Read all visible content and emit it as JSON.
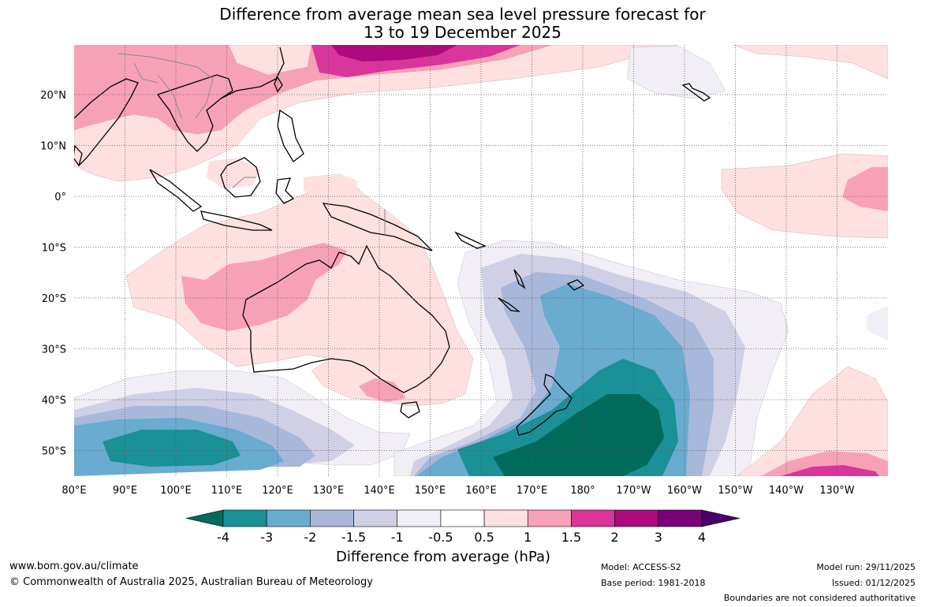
{
  "title_line1": "Difference from average mean sea level pressure forecast for",
  "title_line2": "13 to 19 December 2025",
  "map": {
    "lat_labels": [
      "20°N",
      "10°N",
      "0°",
      "10°S",
      "20°S",
      "30°S",
      "40°S",
      "50°S"
    ],
    "lon_labels": [
      "80°E",
      "90°E",
      "100°E",
      "110°E",
      "120°E",
      "130°E",
      "140°E",
      "150°E",
      "160°E",
      "170°E",
      "180°",
      "170°W",
      "160°W",
      "150°W",
      "140°W",
      "130°W"
    ]
  },
  "colorbar": {
    "colors": [
      "#006b5a",
      "#1a9097",
      "#6aabd0",
      "#a8b8da",
      "#cfd0e6",
      "#f1eef5",
      "#ffffff",
      "#fde0df",
      "#f7a1b8",
      "#d9359a",
      "#ad0a7f",
      "#7a0177",
      "#49006a"
    ],
    "ticks": [
      "-4",
      "-3",
      "-2",
      "-1.5",
      "-1",
      "-0.5",
      "0.5",
      "1",
      "1.5",
      "2",
      "3",
      "4"
    ],
    "label": "Difference from average (hPa)"
  },
  "footer": {
    "url": "www.bom.gov.au/climate",
    "copyright": "© Commonwealth of Australia 2025, Australian Bureau of Meteorology",
    "model": "Model: ACCESS-S2",
    "base_period": "Base period: 1981-2018",
    "model_run": "Model run: 29/11/2025",
    "issued": "Issued: 01/12/2025",
    "disclaimer": "Boundaries are not considered authoritative"
  }
}
